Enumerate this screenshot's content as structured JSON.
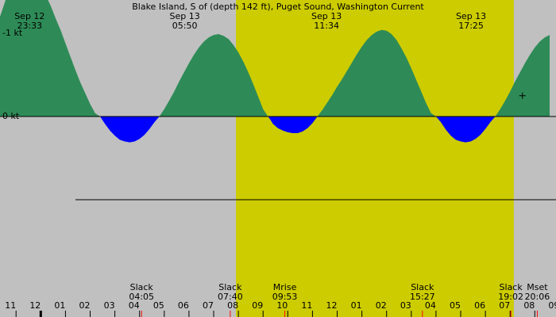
{
  "chart_data": {
    "type": "area",
    "title": "Blake Island, S of (depth 142 ft), Puget Sound, Washington Current",
    "ylabel_unit": "kt",
    "y_ticks": [
      {
        "value": 0,
        "label": "0 kt"
      },
      {
        "value": -1,
        "label": "-1 kt"
      }
    ],
    "x_hours": [
      22.35,
      33.3
    ],
    "ylim": [
      -1.78,
      1.43
    ],
    "daylight": {
      "start_hour": 31.9,
      "end_hour": 43.15
    },
    "colors": {
      "background": "#c0c0c0",
      "daylight": "#cccc00",
      "flood": "#0000ff",
      "ebb": "#2e8b57",
      "sunrise_tick": "#ff0000",
      "moon_tick": "#ff0000"
    },
    "series": [
      {
        "x": [
          22.35,
          22.6,
          22.8,
          23.0,
          23.2,
          23.4,
          23.6,
          23.8,
          24.0,
          24.2,
          24.4,
          24.6,
          24.8,
          25.0,
          25.2,
          25.4,
          25.6,
          25.8,
          26.0,
          26.2,
          26.4,
          26.6,
          26.8,
          27.0,
          27.2,
          27.4,
          27.6,
          27.8,
          28.0,
          28.2,
          28.4,
          28.6,
          28.8,
          29.0,
          29.2,
          29.4,
          29.6,
          29.8,
          30.0,
          30.2,
          30.4,
          30.6,
          30.8,
          31.0,
          31.2,
          31.4,
          31.6,
          31.8,
          32.0,
          32.2,
          32.4,
          32.6,
          32.8,
          33.0,
          33.2,
          33.3,
          33.4,
          33.6,
          33.8,
          34.0,
          34.2,
          34.4,
          34.6,
          34.8,
          35.0,
          35.2,
          35.4,
          35.6,
          35.8,
          36.0,
          36.2,
          36.4,
          36.6,
          36.8,
          37.0,
          37.2,
          37.4,
          37.6,
          37.8,
          38.0,
          38.2,
          38.4,
          38.6,
          38.8,
          39.0,
          39.2,
          39.4,
          39.6,
          39.8,
          40.0,
          40.2,
          40.4,
          40.6,
          40.8,
          41.0,
          41.2,
          41.4,
          41.6,
          41.8,
          42.0,
          42.2,
          42.4,
          42.6,
          42.8,
          43.0,
          43.2,
          43.4,
          43.6,
          43.8,
          44.0,
          44.2,
          44.4,
          44.6
        ],
        "y": [
          -1.2,
          -1.42,
          -1.57,
          -1.66,
          -1.7,
          -1.71,
          -1.7,
          -1.65,
          -1.57,
          -1.46,
          -1.33,
          -1.18,
          -1.04,
          -0.88,
          -0.72,
          -0.56,
          -0.41,
          -0.28,
          -0.15,
          -0.04,
          0.0,
          0.09,
          0.17,
          0.23,
          0.28,
          0.3,
          0.31,
          0.3,
          0.27,
          0.22,
          0.15,
          0.07,
          0.0,
          -0.09,
          -0.19,
          -0.3,
          -0.42,
          -0.53,
          -0.64,
          -0.74,
          -0.83,
          -0.9,
          -0.95,
          -0.98,
          -0.99,
          -0.97,
          -0.93,
          -0.86,
          -0.77,
          -0.66,
          -0.53,
          -0.39,
          -0.24,
          -0.09,
          0.0,
          0.04,
          0.09,
          0.14,
          0.17,
          0.19,
          0.2,
          0.2,
          0.18,
          0.14,
          0.08,
          0.0,
          -0.08,
          -0.17,
          -0.26,
          -0.36,
          -0.45,
          -0.55,
          -0.65,
          -0.75,
          -0.84,
          -0.92,
          -0.98,
          -1.02,
          -1.04,
          -1.03,
          -0.99,
          -0.92,
          -0.82,
          -0.71,
          -0.58,
          -0.44,
          -0.3,
          -0.16,
          -0.04,
          0.0,
          0.07,
          0.16,
          0.23,
          0.28,
          0.3,
          0.31,
          0.3,
          0.27,
          0.22,
          0.15,
          0.07,
          0.0,
          -0.09,
          -0.19,
          -0.3,
          -0.42,
          -0.53,
          -0.64,
          -0.74,
          -0.83,
          -0.9,
          -0.95,
          -0.98
        ]
      }
    ],
    "top_labels": [
      {
        "hour": 23.55,
        "date": "Sep 12",
        "time": "23:33"
      },
      {
        "hour": 29.83,
        "date": "Sep 13",
        "time": "05:50"
      },
      {
        "hour": 35.57,
        "date": "Sep 13",
        "time": "11:34"
      },
      {
        "hour": 41.42,
        "date": "Sep 13",
        "time": "17:25"
      }
    ],
    "events": [
      {
        "hour": 28.08,
        "label": "Slack",
        "time": "04:05"
      },
      {
        "hour": 31.67,
        "label": "Slack",
        "time": "07:40"
      },
      {
        "hour": 33.88,
        "label": "Mrise",
        "time": "09:53"
      },
      {
        "hour": 39.45,
        "label": "Slack",
        "time": "15:27"
      },
      {
        "hour": 43.03,
        "label": "Slack",
        "time": "19:02"
      },
      {
        "hour": 44.1,
        "label": "Mset",
        "time": "20:06"
      }
    ],
    "hour_ticks": [
      "11",
      "12",
      "01",
      "02",
      "03",
      "04",
      "05",
      "06",
      "07",
      "08",
      "09",
      "10",
      "11",
      "12",
      "01",
      "02",
      "03",
      "04",
      "05",
      "06",
      "07",
      "08",
      "09"
    ],
    "hour_tick_start": 23,
    "midnight_hour": 24,
    "red_tick_hours": [
      28.08,
      31.67,
      33.88,
      39.45,
      43.03,
      44.1
    ],
    "plus_marker": {
      "hour": 43.5,
      "value": -0.25
    }
  }
}
